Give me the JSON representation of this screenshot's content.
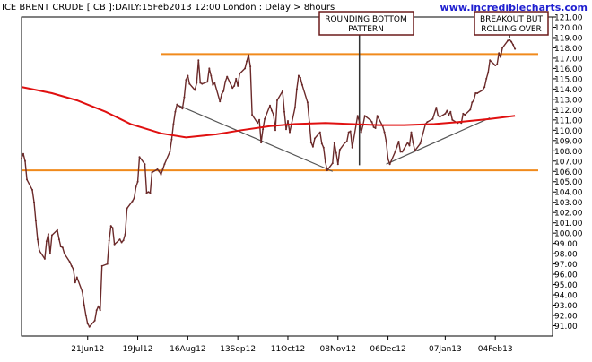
{
  "header": {
    "title": "ICE BRENT CRUDE [ CB ]:DAILY:15Feb2013 12:00 London : Delay > 8hours",
    "watermark": "www.incrediblecharts.com"
  },
  "annotations": {
    "rounding_bottom": [
      "ROUNDING BOTTOM",
      "PATTERN"
    ],
    "breakout": [
      "BREAKOUT BUT",
      "ROLLING OVER"
    ]
  },
  "colors": {
    "price": "#6b2a2a",
    "moving_average": "#e01010",
    "support_resistance": "#f08a1c",
    "trendline": "#555555",
    "annotation_border": "#6b1a1a"
  },
  "chart_data": {
    "type": "line",
    "title": "ICE BRENT CRUDE [ CB ]:DAILY:15Feb2013 12:00 London : Delay > 8hours",
    "xlabel": "",
    "ylabel": "",
    "x_range": [
      "2012-05-15",
      "2013-02-28"
    ],
    "ylim": [
      90.0,
      121.0
    ],
    "y_ticks": [
      91,
      92,
      93,
      94,
      95,
      96,
      97,
      98,
      99,
      100,
      101,
      102,
      103,
      104,
      105,
      106,
      107,
      108,
      109,
      110,
      111,
      112,
      113,
      114,
      115,
      116,
      117,
      118,
      119,
      120,
      121
    ],
    "y_tick_labels": [
      "91.00",
      "92.00",
      "93.00",
      "94.00",
      "95.00",
      "96.00",
      "97.00",
      "98.00",
      "99.00",
      "100.00",
      "101.00",
      "102.00",
      "103.00",
      "104.00",
      "105.00",
      "106.00",
      "107.00",
      "108.00",
      "109.00",
      "110.00",
      "111.00",
      "112.00",
      "113.00",
      "114.00",
      "115.00",
      "116.00",
      "117.00",
      "118.00",
      "119.00",
      "120.00",
      "121.00"
    ],
    "x_ticks": [
      "2012-06-21",
      "2012-07-19",
      "2012-08-16",
      "2012-09-13",
      "2012-10-11",
      "2012-11-08",
      "2012-12-06",
      "2013-01-07",
      "2013-02-04"
    ],
    "x_tick_labels": [
      "21Jun12",
      "19Jul12",
      "16Aug12",
      "13Sep12",
      "11Oct12",
      "08Nov12",
      "06Dec12",
      "07Jan13",
      "04Feb13"
    ],
    "grid": false,
    "series": [
      {
        "role": "price",
        "values": [
          [
            "2012-05-15",
            107.3
          ],
          [
            "2012-05-16",
            107.7
          ],
          [
            "2012-05-17",
            107.0
          ],
          [
            "2012-05-18",
            105.2
          ],
          [
            "2012-05-21",
            104.2
          ],
          [
            "2012-05-22",
            103.0
          ],
          [
            "2012-05-23",
            101.2
          ],
          [
            "2012-05-24",
            99.4
          ],
          [
            "2012-05-25",
            98.3
          ],
          [
            "2012-05-28",
            97.5
          ],
          [
            "2012-05-29",
            99.2
          ],
          [
            "2012-05-30",
            99.9
          ],
          [
            "2012-05-31",
            98.0
          ],
          [
            "2012-06-01",
            99.8
          ],
          [
            "2012-06-04",
            100.3
          ],
          [
            "2012-06-05",
            99.4
          ],
          [
            "2012-06-06",
            98.7
          ],
          [
            "2012-06-07",
            98.6
          ],
          [
            "2012-06-08",
            98.0
          ],
          [
            "2012-06-11",
            97.2
          ],
          [
            "2012-06-12",
            96.8
          ],
          [
            "2012-06-13",
            96.5
          ],
          [
            "2012-06-14",
            95.2
          ],
          [
            "2012-06-15",
            95.7
          ],
          [
            "2012-06-18",
            94.3
          ],
          [
            "2012-06-19",
            93.0
          ],
          [
            "2012-06-20",
            92.0
          ],
          [
            "2012-06-21",
            91.2
          ],
          [
            "2012-06-22",
            90.9
          ],
          [
            "2012-06-25",
            91.5
          ],
          [
            "2012-06-26",
            92.5
          ],
          [
            "2012-06-27",
            92.9
          ],
          [
            "2012-06-28",
            92.5
          ],
          [
            "2012-06-29",
            96.8
          ],
          [
            "2012-07-02",
            97.0
          ],
          [
            "2012-07-03",
            99.3
          ],
          [
            "2012-07-04",
            100.7
          ],
          [
            "2012-07-05",
            100.5
          ],
          [
            "2012-07-06",
            98.9
          ],
          [
            "2012-07-09",
            99.4
          ],
          [
            "2012-07-10",
            99.1
          ],
          [
            "2012-07-11",
            99.3
          ],
          [
            "2012-07-12",
            99.9
          ],
          [
            "2012-07-13",
            102.4
          ],
          [
            "2012-07-16",
            103.1
          ],
          [
            "2012-07-17",
            103.4
          ],
          [
            "2012-07-18",
            104.5
          ],
          [
            "2012-07-19",
            105.0
          ],
          [
            "2012-07-20",
            107.4
          ],
          [
            "2012-07-23",
            106.7
          ],
          [
            "2012-07-24",
            103.9
          ],
          [
            "2012-07-25",
            104.0
          ],
          [
            "2012-07-26",
            103.9
          ],
          [
            "2012-07-27",
            105.9
          ],
          [
            "2012-07-30",
            106.2
          ],
          [
            "2012-07-31",
            106.0
          ],
          [
            "2012-08-01",
            105.7
          ],
          [
            "2012-08-02",
            106.2
          ],
          [
            "2012-08-03",
            106.7
          ],
          [
            "2012-08-06",
            107.9
          ],
          [
            "2012-08-07",
            109.1
          ],
          [
            "2012-08-08",
            110.6
          ],
          [
            "2012-08-09",
            111.8
          ],
          [
            "2012-08-10",
            112.5
          ],
          [
            "2012-08-13",
            112.1
          ],
          [
            "2012-08-14",
            113.2
          ],
          [
            "2012-08-15",
            114.9
          ],
          [
            "2012-08-16",
            115.3
          ],
          [
            "2012-08-17",
            114.5
          ],
          [
            "2012-08-20",
            113.9
          ],
          [
            "2012-08-21",
            114.6
          ],
          [
            "2012-08-22",
            116.8
          ],
          [
            "2012-08-23",
            114.6
          ],
          [
            "2012-08-24",
            114.5
          ],
          [
            "2012-08-27",
            114.7
          ],
          [
            "2012-08-28",
            116.0
          ],
          [
            "2012-08-29",
            115.3
          ],
          [
            "2012-08-30",
            114.4
          ],
          [
            "2012-08-31",
            114.6
          ],
          [
            "2012-09-03",
            112.8
          ],
          [
            "2012-09-04",
            113.5
          ],
          [
            "2012-09-05",
            113.8
          ],
          [
            "2012-09-06",
            114.7
          ],
          [
            "2012-09-07",
            115.2
          ],
          [
            "2012-09-10",
            114.1
          ],
          [
            "2012-09-11",
            114.3
          ],
          [
            "2012-09-12",
            115.0
          ],
          [
            "2012-09-13",
            114.3
          ],
          [
            "2012-09-14",
            115.5
          ],
          [
            "2012-09-17",
            116.0
          ],
          [
            "2012-09-18",
            116.7
          ],
          [
            "2012-09-19",
            117.3
          ],
          [
            "2012-09-20",
            116.2
          ],
          [
            "2012-09-21",
            111.5
          ],
          [
            "2012-09-24",
            110.7
          ],
          [
            "2012-09-25",
            111.0
          ],
          [
            "2012-09-26",
            108.8
          ],
          [
            "2012-09-27",
            110.1
          ],
          [
            "2012-09-28",
            111.1
          ],
          [
            "2012-10-01",
            112.4
          ],
          [
            "2012-10-02",
            111.9
          ],
          [
            "2012-10-03",
            111.5
          ],
          [
            "2012-10-04",
            110.0
          ],
          [
            "2012-10-05",
            112.9
          ],
          [
            "2012-10-08",
            113.8
          ],
          [
            "2012-10-09",
            111.8
          ],
          [
            "2012-10-10",
            110.1
          ],
          [
            "2012-10-11",
            110.9
          ],
          [
            "2012-10-12",
            109.8
          ],
          [
            "2012-10-15",
            112.2
          ],
          [
            "2012-10-16",
            114.0
          ],
          [
            "2012-10-17",
            115.3
          ],
          [
            "2012-10-18",
            115.1
          ],
          [
            "2012-10-19",
            114.4
          ],
          [
            "2012-10-22",
            112.7
          ],
          [
            "2012-10-23",
            110.8
          ],
          [
            "2012-10-24",
            108.8
          ],
          [
            "2012-10-25",
            108.4
          ],
          [
            "2012-10-26",
            109.2
          ],
          [
            "2012-10-29",
            109.8
          ],
          [
            "2012-10-30",
            108.7
          ],
          [
            "2012-10-31",
            108.3
          ],
          [
            "2012-11-01",
            106.9
          ],
          [
            "2012-11-02",
            106.1
          ],
          [
            "2012-11-05",
            106.8
          ],
          [
            "2012-11-06",
            108.8
          ],
          [
            "2012-11-07",
            107.8
          ],
          [
            "2012-11-08",
            106.7
          ],
          [
            "2012-11-09",
            108.1
          ],
          [
            "2012-11-12",
            108.8
          ],
          [
            "2012-11-13",
            108.9
          ],
          [
            "2012-11-14",
            109.8
          ],
          [
            "2012-11-15",
            109.9
          ],
          [
            "2012-11-16",
            108.3
          ],
          [
            "2012-11-19",
            111.4
          ],
          [
            "2012-11-20",
            110.8
          ],
          [
            "2012-11-21",
            109.8
          ],
          [
            "2012-11-22",
            110.5
          ],
          [
            "2012-11-23",
            111.4
          ],
          [
            "2012-11-26",
            111.0
          ],
          [
            "2012-11-27",
            110.8
          ],
          [
            "2012-11-28",
            110.3
          ],
          [
            "2012-11-29",
            110.2
          ],
          [
            "2012-11-30",
            111.4
          ],
          [
            "2012-12-03",
            110.4
          ],
          [
            "2012-12-04",
            109.8
          ],
          [
            "2012-12-05",
            108.9
          ],
          [
            "2012-12-06",
            107.2
          ],
          [
            "2012-12-07",
            106.7
          ],
          [
            "2012-12-10",
            107.9
          ],
          [
            "2012-12-11",
            108.4
          ],
          [
            "2012-12-12",
            108.9
          ],
          [
            "2012-12-13",
            107.9
          ],
          [
            "2012-12-14",
            107.9
          ],
          [
            "2012-12-17",
            108.8
          ],
          [
            "2012-12-18",
            108.5
          ],
          [
            "2012-12-19",
            109.8
          ],
          [
            "2012-12-20",
            108.8
          ],
          [
            "2012-12-21",
            108.0
          ],
          [
            "2012-12-24",
            108.7
          ],
          [
            "2012-12-27",
            110.6
          ],
          [
            "2012-12-28",
            110.8
          ],
          [
            "2012-12-31",
            111.1
          ],
          [
            "2013-01-02",
            112.2
          ],
          [
            "2013-01-03",
            111.4
          ],
          [
            "2013-01-04",
            111.3
          ],
          [
            "2013-01-07",
            111.6
          ],
          [
            "2013-01-08",
            111.9
          ],
          [
            "2013-01-09",
            111.5
          ],
          [
            "2013-01-10",
            111.8
          ],
          [
            "2013-01-11",
            111.0
          ],
          [
            "2013-01-14",
            110.7
          ],
          [
            "2013-01-15",
            110.8
          ],
          [
            "2013-01-16",
            110.7
          ],
          [
            "2013-01-17",
            111.6
          ],
          [
            "2013-01-18",
            111.5
          ],
          [
            "2013-01-21",
            112.0
          ],
          [
            "2013-01-22",
            112.7
          ],
          [
            "2013-01-23",
            112.9
          ],
          [
            "2013-01-24",
            113.6
          ],
          [
            "2013-01-25",
            113.6
          ],
          [
            "2013-01-28",
            113.9
          ],
          [
            "2013-01-29",
            114.2
          ],
          [
            "2013-01-30",
            115.0
          ],
          [
            "2013-01-31",
            115.6
          ],
          [
            "2013-02-01",
            116.8
          ],
          [
            "2013-02-04",
            116.3
          ],
          [
            "2013-02-05",
            116.4
          ],
          [
            "2013-02-06",
            117.5
          ],
          [
            "2013-02-07",
            117.1
          ],
          [
            "2013-02-08",
            118.0
          ],
          [
            "2013-02-11",
            118.7
          ],
          [
            "2013-02-12",
            118.8
          ],
          [
            "2013-02-13",
            118.6
          ],
          [
            "2013-02-14",
            118.3
          ],
          [
            "2013-02-15",
            117.9
          ]
        ]
      },
      {
        "role": "moving_average",
        "values": [
          [
            "2012-05-15",
            114.2
          ],
          [
            "2012-06-01",
            113.6
          ],
          [
            "2012-06-15",
            112.9
          ],
          [
            "2012-07-01",
            111.8
          ],
          [
            "2012-07-15",
            110.6
          ],
          [
            "2012-08-01",
            109.7
          ],
          [
            "2012-08-15",
            109.3
          ],
          [
            "2012-09-01",
            109.6
          ],
          [
            "2012-09-15",
            110.0
          ],
          [
            "2012-10-01",
            110.4
          ],
          [
            "2012-10-15",
            110.6
          ],
          [
            "2012-11-01",
            110.7
          ],
          [
            "2012-11-15",
            110.6
          ],
          [
            "2012-12-01",
            110.5
          ],
          [
            "2012-12-15",
            110.5
          ],
          [
            "2013-01-01",
            110.6
          ],
          [
            "2013-01-15",
            110.8
          ],
          [
            "2013-02-01",
            111.1
          ],
          [
            "2013-02-15",
            111.4
          ]
        ]
      }
    ],
    "horizontal_lines": [
      {
        "role": "resistance",
        "y": 117.4,
        "x_start": "2012-08-01",
        "x_end": "2013-02-28"
      },
      {
        "role": "support",
        "y": 106.1,
        "x_start": "2012-05-15",
        "x_end": "2013-02-28"
      }
    ],
    "trendlines": [
      {
        "role": "falling_trendline",
        "points": [
          [
            "2012-08-11",
            112.4
          ],
          [
            "2012-11-05",
            106.0
          ]
        ]
      },
      {
        "role": "rising_trendline",
        "points": [
          [
            "2012-12-05",
            106.7
          ],
          [
            "2013-02-01",
            111.2
          ]
        ]
      }
    ],
    "markers": [
      {
        "role": "rounding_bottom_marker",
        "x": "2012-11-20",
        "y_top": 121.0,
        "y_bottom": 106.6
      },
      {
        "role": "breakout_marker",
        "x": "2013-02-12",
        "y_top": 121.0,
        "y_bottom": 119.0
      }
    ]
  }
}
